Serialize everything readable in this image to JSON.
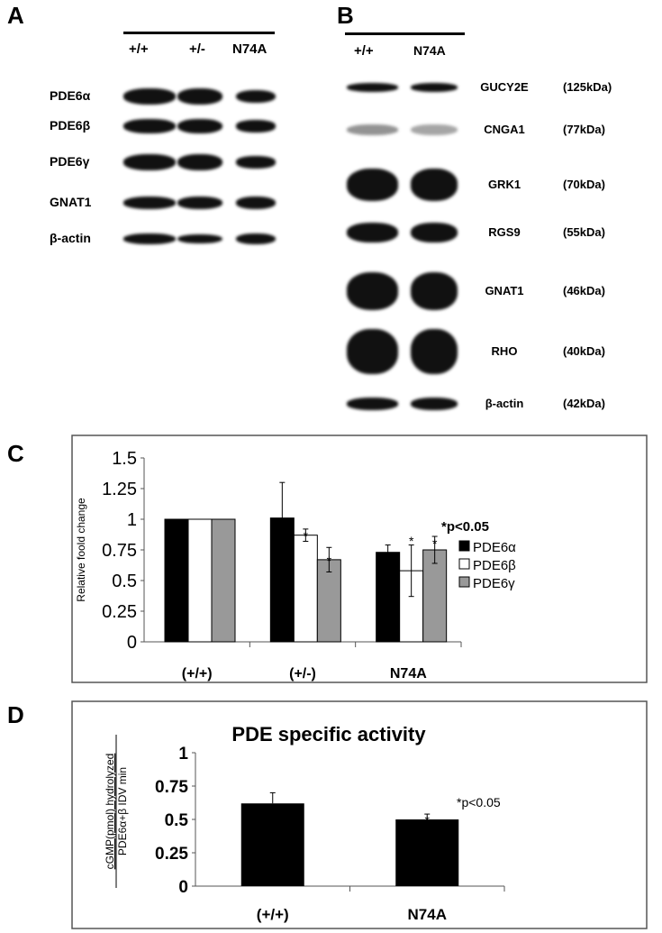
{
  "panelA": {
    "label": "A",
    "lanes": [
      "+/+",
      "+/-",
      "N74A"
    ],
    "proteins": [
      "PDE6α",
      "PDE6β",
      "PDE6γ",
      "GNAT1",
      "β-actin"
    ]
  },
  "panelB": {
    "label": "B",
    "lanes": [
      "+/+",
      "N74A"
    ],
    "proteins": [
      {
        "name": "GUCY2E",
        "kda": "(125kDa)"
      },
      {
        "name": "CNGA1",
        "kda": "(77kDa)"
      },
      {
        "name": "GRK1",
        "kda": "(70kDa)"
      },
      {
        "name": "RGS9",
        "kda": "(55kDa)"
      },
      {
        "name": "GNAT1",
        "kda": "(46kDa)"
      },
      {
        "name": "RHO",
        "kda": "(40kDa)"
      },
      {
        "name": "β-actin",
        "kda": "(42kDa)"
      }
    ]
  },
  "chart_data": [
    {
      "panel": "C",
      "type": "bar",
      "title": "",
      "ylabel": "Relative foold change",
      "xlabel": "",
      "ylim": [
        0,
        1.5
      ],
      "yticks": [
        "0",
        "0.25",
        "0.5",
        "0.75",
        "1",
        "1.25",
        "1.5"
      ],
      "categories": [
        "(+/+)",
        "(+/-)",
        "N74A"
      ],
      "series": [
        {
          "name": "PDE6α",
          "color": "#000000",
          "values": [
            1.0,
            1.01,
            0.73
          ],
          "errors": [
            0,
            0.29,
            0.06
          ]
        },
        {
          "name": "PDE6β",
          "color": "#ffffff",
          "values": [
            1.0,
            0.87,
            0.58
          ],
          "errors": [
            0,
            0.05,
            0.21
          ]
        },
        {
          "name": "PDE6γ",
          "color": "#999999",
          "values": [
            1.0,
            0.67,
            0.75
          ],
          "errors": [
            0,
            0.1,
            0.11
          ]
        }
      ],
      "significance_note": "*p<0.05",
      "legend": "right"
    },
    {
      "panel": "D",
      "type": "bar",
      "title": "PDE specific activity",
      "ylabel_numerator": "cGMP(pmol) hydrolyzed",
      "ylabel_denominator": "PDE6α+β IDV min",
      "ylim": [
        0,
        1
      ],
      "yticks": [
        "0",
        "0.25",
        "0.5",
        "0.75",
        "1"
      ],
      "categories": [
        "(+/+)",
        "N74A"
      ],
      "values": [
        0.62,
        0.5
      ],
      "errors": [
        0.08,
        0.04
      ],
      "color": "#000000",
      "significance_note": "*p<0.05"
    }
  ]
}
